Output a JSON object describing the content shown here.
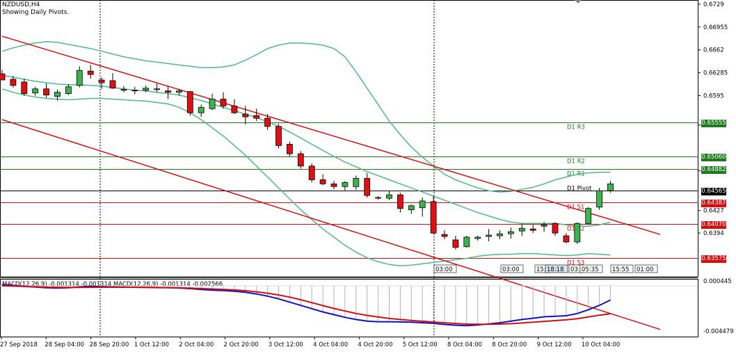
{
  "header": {
    "symbol": "NZDUSD,H4",
    "subtitle": "Showing Daily Pivots."
  },
  "colors": {
    "bull": "#3cb44b",
    "bear": "#e01010",
    "bollinger": "#52b788",
    "channel": "#d01010",
    "resistance": "#1f7a1f",
    "support": "#d01010",
    "pivot": "#000000",
    "macd_main": "#1010c0",
    "macd_signal": "#d01010",
    "histogram": "#b0b0b0"
  },
  "chart_data": {
    "type": "candlestick",
    "price_axis": {
      "ticks": [
        0.6729,
        0.66955,
        0.6662,
        0.66285,
        0.6595,
        0.6552,
        0.6485,
        0.6427,
        0.6394
      ]
    },
    "time_axis": {
      "labels": [
        "27 Sep 2018",
        "28 Sep 04:00",
        "28 Sep 20:00",
        "1 Oct 12:00",
        "2 Oct 04:00",
        "2 Oct 20:00",
        "3 Oct 12:00",
        "4 Oct 04:00",
        "4 Oct 20:00",
        "5 Oct 12:00",
        "8 Oct 04:00",
        "8 Oct 20:00",
        "9 Oct 12:00",
        "10 Oct 04:00"
      ]
    },
    "candles": [
      {
        "o": 0.6627,
        "h": 0.6633,
        "l": 0.6618,
        "c": 0.6618
      },
      {
        "o": 0.6619,
        "h": 0.6624,
        "l": 0.6607,
        "c": 0.661
      },
      {
        "o": 0.6615,
        "h": 0.662,
        "l": 0.6595,
        "c": 0.6598
      },
      {
        "o": 0.6599,
        "h": 0.6608,
        "l": 0.6595,
        "c": 0.6605
      },
      {
        "o": 0.6605,
        "h": 0.6613,
        "l": 0.6592,
        "c": 0.6596
      },
      {
        "o": 0.6594,
        "h": 0.6604,
        "l": 0.6588,
        "c": 0.66
      },
      {
        "o": 0.6598,
        "h": 0.6612,
        "l": 0.6596,
        "c": 0.6608
      },
      {
        "o": 0.661,
        "h": 0.6638,
        "l": 0.6607,
        "c": 0.6632
      },
      {
        "o": 0.6631,
        "h": 0.664,
        "l": 0.662,
        "c": 0.6626
      },
      {
        "o": 0.6618,
        "h": 0.6622,
        "l": 0.6605,
        "c": 0.6614
      },
      {
        "o": 0.6617,
        "h": 0.6628,
        "l": 0.6605,
        "c": 0.6606
      },
      {
        "o": 0.6604,
        "h": 0.6609,
        "l": 0.66,
        "c": 0.6604
      },
      {
        "o": 0.6603,
        "h": 0.6608,
        "l": 0.6597,
        "c": 0.6602
      },
      {
        "o": 0.6603,
        "h": 0.661,
        "l": 0.66,
        "c": 0.6606
      },
      {
        "o": 0.6605,
        "h": 0.6613,
        "l": 0.66,
        "c": 0.6605
      },
      {
        "o": 0.6602,
        "h": 0.6609,
        "l": 0.659,
        "c": 0.66
      },
      {
        "o": 0.66,
        "h": 0.6605,
        "l": 0.6595,
        "c": 0.6602
      },
      {
        "o": 0.6601,
        "h": 0.6602,
        "l": 0.6566,
        "c": 0.657
      },
      {
        "o": 0.657,
        "h": 0.6582,
        "l": 0.6564,
        "c": 0.6578
      },
      {
        "o": 0.6576,
        "h": 0.6598,
        "l": 0.6574,
        "c": 0.659
      },
      {
        "o": 0.659,
        "h": 0.66,
        "l": 0.6576,
        "c": 0.658
      },
      {
        "o": 0.658,
        "h": 0.659,
        "l": 0.6568,
        "c": 0.657
      },
      {
        "o": 0.6568,
        "h": 0.658,
        "l": 0.6553,
        "c": 0.6564
      },
      {
        "o": 0.6566,
        "h": 0.6576,
        "l": 0.6558,
        "c": 0.6562
      },
      {
        "o": 0.6562,
        "h": 0.6568,
        "l": 0.6545,
        "c": 0.655
      },
      {
        "o": 0.655,
        "h": 0.6554,
        "l": 0.6518,
        "c": 0.6522
      },
      {
        "o": 0.6524,
        "h": 0.6528,
        "l": 0.6506,
        "c": 0.651
      },
      {
        "o": 0.651,
        "h": 0.6514,
        "l": 0.6488,
        "c": 0.6492
      },
      {
        "o": 0.6492,
        "h": 0.6496,
        "l": 0.6468,
        "c": 0.6472
      },
      {
        "o": 0.6472,
        "h": 0.648,
        "l": 0.6464,
        "c": 0.6466
      },
      {
        "o": 0.6466,
        "h": 0.647,
        "l": 0.6458,
        "c": 0.6462
      },
      {
        "o": 0.6462,
        "h": 0.647,
        "l": 0.6456,
        "c": 0.6468
      },
      {
        "o": 0.6462,
        "h": 0.6478,
        "l": 0.6457,
        "c": 0.6474
      },
      {
        "o": 0.6474,
        "h": 0.6482,
        "l": 0.6446,
        "c": 0.6449
      },
      {
        "o": 0.6445,
        "h": 0.6448,
        "l": 0.6443,
        "c": 0.6446
      },
      {
        "o": 0.6445,
        "h": 0.6456,
        "l": 0.6442,
        "c": 0.645
      },
      {
        "o": 0.645,
        "h": 0.6453,
        "l": 0.6424,
        "c": 0.643
      },
      {
        "o": 0.6428,
        "h": 0.6436,
        "l": 0.6422,
        "c": 0.6434
      },
      {
        "o": 0.6431,
        "h": 0.6446,
        "l": 0.6418,
        "c": 0.6441
      },
      {
        "o": 0.644,
        "h": 0.6448,
        "l": 0.6393,
        "c": 0.6394
      },
      {
        "o": 0.6392,
        "h": 0.6398,
        "l": 0.6385,
        "c": 0.6389
      },
      {
        "o": 0.6384,
        "h": 0.639,
        "l": 0.637,
        "c": 0.6373
      },
      {
        "o": 0.6374,
        "h": 0.639,
        "l": 0.6373,
        "c": 0.6388
      },
      {
        "o": 0.6386,
        "h": 0.639,
        "l": 0.6383,
        "c": 0.6388
      },
      {
        "o": 0.6389,
        "h": 0.64,
        "l": 0.6382,
        "c": 0.6391
      },
      {
        "o": 0.639,
        "h": 0.6398,
        "l": 0.6385,
        "c": 0.6393
      },
      {
        "o": 0.6393,
        "h": 0.6402,
        "l": 0.6386,
        "c": 0.6396
      },
      {
        "o": 0.6397,
        "h": 0.6408,
        "l": 0.639,
        "c": 0.6401
      },
      {
        "o": 0.64,
        "h": 0.6406,
        "l": 0.6394,
        "c": 0.6398
      },
      {
        "o": 0.6404,
        "h": 0.641,
        "l": 0.6396,
        "c": 0.6406
      },
      {
        "o": 0.6408,
        "h": 0.641,
        "l": 0.639,
        "c": 0.6394
      },
      {
        "o": 0.639,
        "h": 0.6394,
        "l": 0.6379,
        "c": 0.6381
      },
      {
        "o": 0.6381,
        "h": 0.641,
        "l": 0.6378,
        "c": 0.6408
      },
      {
        "o": 0.6408,
        "h": 0.6432,
        "l": 0.6406,
        "c": 0.643
      },
      {
        "o": 0.6432,
        "h": 0.646,
        "l": 0.6428,
        "c": 0.6456
      },
      {
        "o": 0.6456,
        "h": 0.647,
        "l": 0.6453,
        "c": 0.6466
      }
    ],
    "bollinger": {
      "upper": [
        0.666,
        0.6665,
        0.6669,
        0.6672,
        0.6674,
        0.6673,
        0.667,
        0.6667,
        0.6664,
        0.666,
        0.6656,
        0.6652,
        0.6649,
        0.6646,
        0.6644,
        0.6642,
        0.664,
        0.6638,
        0.6636,
        0.6636,
        0.6637,
        0.664,
        0.6647,
        0.6655,
        0.6664,
        0.6669,
        0.6672,
        0.6672,
        0.6671,
        0.6669,
        0.6664,
        0.6652,
        0.663,
        0.6606,
        0.6582,
        0.6558,
        0.6538,
        0.652,
        0.6505,
        0.6492,
        0.648,
        0.6472,
        0.6466,
        0.646,
        0.6456,
        0.6454,
        0.6455,
        0.6458,
        0.6461,
        0.6466,
        0.6472,
        0.6476,
        0.648,
        0.6482,
        0.6483,
        0.6483
      ],
      "middle": [
        0.6625,
        0.6622,
        0.6619,
        0.6616,
        0.6614,
        0.6612,
        0.6611,
        0.6611,
        0.661,
        0.6609,
        0.6607,
        0.6605,
        0.6603,
        0.6602,
        0.66,
        0.6598,
        0.6596,
        0.6592,
        0.6588,
        0.6583,
        0.6578,
        0.6573,
        0.6568,
        0.6563,
        0.6557,
        0.655,
        0.6542,
        0.6533,
        0.6524,
        0.6515,
        0.6506,
        0.6498,
        0.6491,
        0.6484,
        0.6478,
        0.6472,
        0.6466,
        0.646,
        0.6454,
        0.6448,
        0.6442,
        0.6436,
        0.643,
        0.6424,
        0.6419,
        0.6414,
        0.641,
        0.6408,
        0.6408,
        0.6408,
        0.6408,
        0.6406,
        0.6404,
        0.6404,
        0.6406,
        0.641
      ],
      "lower": [
        0.6605,
        0.66,
        0.6596,
        0.6593,
        0.6591,
        0.659,
        0.6589,
        0.659,
        0.6591,
        0.6591,
        0.659,
        0.6589,
        0.6588,
        0.6587,
        0.6585,
        0.6583,
        0.6578,
        0.657,
        0.656,
        0.6548,
        0.6536,
        0.6522,
        0.6508,
        0.6492,
        0.6476,
        0.646,
        0.6444,
        0.6428,
        0.6414,
        0.64,
        0.6388,
        0.6376,
        0.6366,
        0.6358,
        0.6352,
        0.6348,
        0.6346,
        0.6347,
        0.6349,
        0.6351,
        0.6353,
        0.6355,
        0.6357,
        0.636,
        0.6362,
        0.6363,
        0.6363,
        0.6364,
        0.6364,
        0.6363,
        0.6362,
        0.6361,
        0.6362,
        0.6364,
        0.6363,
        0.6362
      ]
    },
    "channel_lines": [
      {
        "from": [
          0,
          0.6682
        ],
        "to": [
          59.5,
          0.6392
        ]
      },
      {
        "from": [
          0,
          0.656
        ],
        "to": [
          59.5,
          0.6253
        ]
      }
    ],
    "pivot_levels": [
      {
        "name": "D1 R3",
        "price": 0.65555,
        "kind": "resistance",
        "tag": "0.65555"
      },
      {
        "name": "D1 R2",
        "price": 0.6506,
        "kind": "resistance",
        "tag": "0.65060"
      },
      {
        "name": "D1 R1",
        "price": 0.64882,
        "kind": "resistance",
        "tag": "0.64882"
      },
      {
        "name": "D1 Pivot",
        "price": 0.64565,
        "kind": "pivot",
        "tag": "0.64565"
      },
      {
        "name": "D1 S1",
        "price": 0.64387,
        "kind": "support",
        "tag": "0.64387"
      },
      {
        "name": "D1 S2",
        "price": 0.6407,
        "kind": "support",
        "tag": "0.64070"
      },
      {
        "name": "D1 S3",
        "price": 0.63575,
        "kind": "support",
        "tag": "0.63575"
      }
    ],
    "session_labels": [
      "03:00",
      "03:00",
      "15:",
      "18:18",
      "03:",
      "05:35",
      "15:55",
      "01:00"
    ],
    "macd": {
      "label": "MACD(12,26,9) -0.001314 -0.001314 MACD(12,26,9) -0.001314 -0.002566",
      "axis_ticks": [
        "0.000445",
        "-0.004479"
      ],
      "ylim": [
        -0.004479,
        0.000445
      ],
      "main": [
        0.0001,
        5e-05,
        -5e-05,
        -0.00012,
        -0.00018,
        -0.0002,
        -0.00018,
        -0.0001,
        -5e-05,
        -8e-05,
        -0.0001,
        -0.00012,
        -0.00014,
        -0.00015,
        -0.00016,
        -0.00018,
        -0.0002,
        -0.00026,
        -0.00034,
        -0.0004,
        -0.00044,
        -0.0005,
        -0.0006,
        -0.00075,
        -0.00095,
        -0.0012,
        -0.0015,
        -0.0018,
        -0.0021,
        -0.0024,
        -0.00265,
        -0.0029,
        -0.0031,
        -0.00325,
        -0.0033,
        -0.0033,
        -0.00332,
        -0.00335,
        -0.0034,
        -0.00345,
        -0.00355,
        -0.00362,
        -0.00366,
        -0.0036,
        -0.0035,
        -0.0034,
        -0.00325,
        -0.0031,
        -0.00298,
        -0.00285,
        -0.0028,
        -0.00275,
        -0.00255,
        -0.0022,
        -0.0018,
        -0.00131
      ],
      "signal": [
        0.0,
        -3e-05,
        -6e-05,
        -9e-05,
        -0.00012,
        -0.00014,
        -0.00015,
        -0.00015,
        -0.00014,
        -0.00013,
        -0.00013,
        -0.00013,
        -0.00013,
        -0.00014,
        -0.00015,
        -0.00016,
        -0.00018,
        -0.00021,
        -0.00025,
        -0.00029,
        -0.00033,
        -0.00038,
        -0.00045,
        -0.00055,
        -0.00068,
        -0.00084,
        -0.00104,
        -0.00128,
        -0.00155,
        -0.00182,
        -0.00208,
        -0.00232,
        -0.00254,
        -0.00272,
        -0.00287,
        -0.003,
        -0.0031,
        -0.00318,
        -0.00326,
        -0.00333,
        -0.0034,
        -0.00346,
        -0.00352,
        -0.00354,
        -0.00354,
        -0.00352,
        -0.00348,
        -0.00342,
        -0.00335,
        -0.00327,
        -0.0032,
        -0.00313,
        -0.00302,
        -0.00287,
        -0.0027,
        -0.00257
      ]
    }
  }
}
